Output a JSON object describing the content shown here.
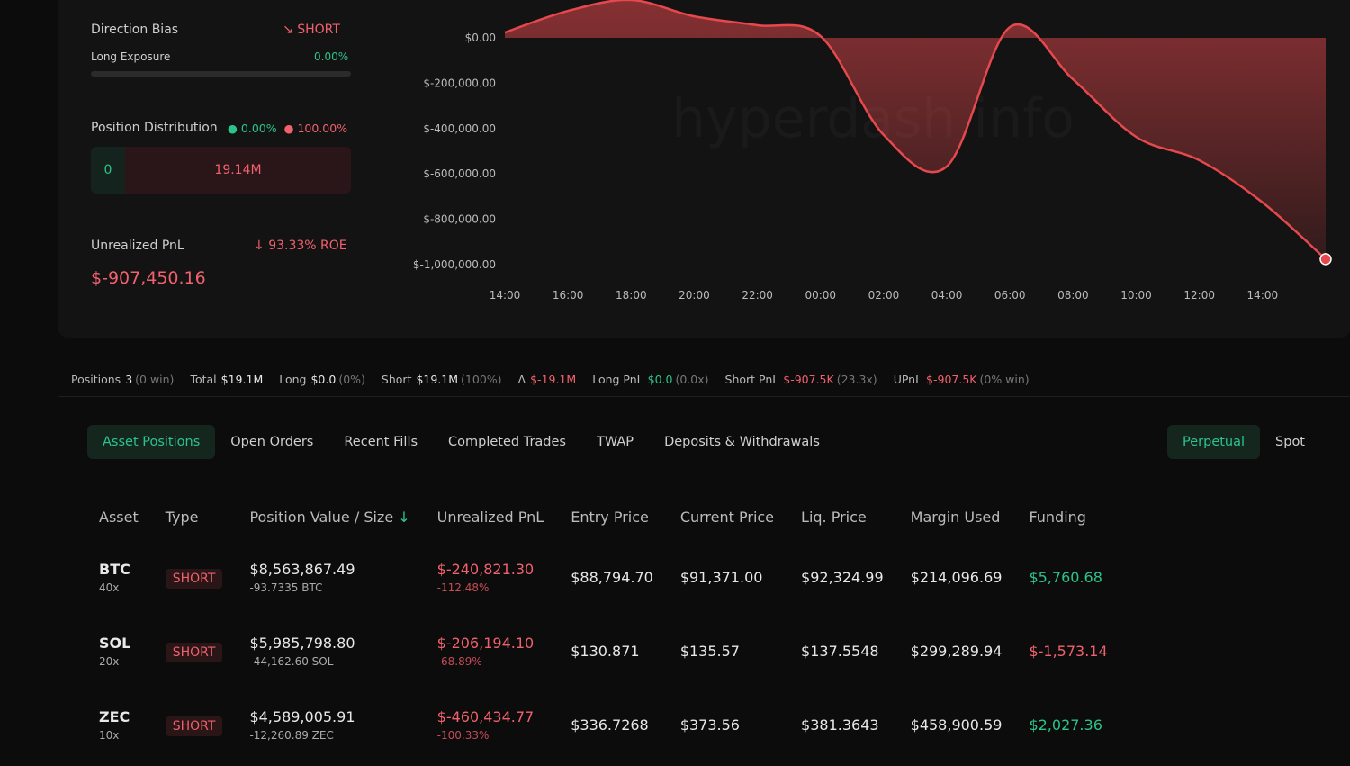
{
  "summary": {
    "direction_bias": {
      "label": "Direction Bias",
      "value": "SHORT"
    },
    "long_exposure": {
      "label": "Long Exposure",
      "value": "0.00%"
    },
    "position_distribution": {
      "label": "Position Distribution",
      "long_pct": "0.00%",
      "short_pct": "100.00%",
      "long_value": "0",
      "short_value": "19.14M"
    },
    "unrealized_pnl": {
      "label": "Unrealized PnL",
      "roe": "93.33% ROE",
      "value": "$-907,450.16"
    }
  },
  "chart_data": {
    "type": "line",
    "watermark": "hyperdash.info",
    "categories": [
      "14:00",
      "16:00",
      "18:00",
      "20:00",
      "22:00",
      "00:00",
      "02:00",
      "04:00",
      "06:00",
      "08:00",
      "10:00",
      "12:00",
      "14:00",
      null
    ],
    "values": [
      24000,
      119000,
      167000,
      95000,
      56000,
      8000,
      -428000,
      -567000,
      48000,
      -183000,
      -437000,
      -540000,
      -726000,
      -976000
    ],
    "color": "#e5484d",
    "ylim": [
      -1040000,
      167000
    ],
    "yticks": [
      {
        "value": 0,
        "label": "$0.00"
      },
      {
        "value": -200000,
        "label": "$-200,000.00"
      },
      {
        "value": -400000,
        "label": "$-400,000.00"
      },
      {
        "value": -600000,
        "label": "$-600,000.00"
      },
      {
        "value": -800000,
        "label": "$-800,000.00"
      },
      {
        "value": -1000000,
        "label": "$-1,000,000.00"
      }
    ]
  },
  "stats": [
    {
      "label": "Positions",
      "value": "3",
      "sub": "(0 win)",
      "color": "#e8e8e8"
    },
    {
      "label": "Total",
      "value": "$19.1M",
      "color": "#e8e8e8"
    },
    {
      "label": "Long",
      "value": "$0.0",
      "sub": "(0%)",
      "color": "#e8e8e8"
    },
    {
      "label": "Short",
      "value": "$19.1M",
      "sub": "(100%)",
      "color": "#e8e8e8"
    },
    {
      "label": "Δ",
      "value": "$-19.1M",
      "color": "#f0616d"
    },
    {
      "label": "Long PnL",
      "value": "$0.0",
      "sub": "(0.0x)",
      "color": "#2bc48a"
    },
    {
      "label": "Short PnL",
      "value": "$-907.5K",
      "sub": "(23.3x)",
      "color": "#f0616d"
    },
    {
      "label": "UPnL",
      "value": "$-907.5K",
      "sub": "(0% win)",
      "color": "#f0616d"
    }
  ],
  "tabs": [
    "Asset Positions",
    "Open Orders",
    "Recent Fills",
    "Completed Trades",
    "TWAP",
    "Deposits & Withdrawals"
  ],
  "market_toggle": [
    "Perpetual",
    "Spot"
  ],
  "table": {
    "headers": [
      "Asset",
      "Type",
      "Position Value / Size",
      "Unrealized PnL",
      "Entry Price",
      "Current Price",
      "Liq. Price",
      "Margin Used",
      "Funding"
    ],
    "rows": [
      {
        "asset": "BTC",
        "leverage": "40x",
        "type": "SHORT",
        "value": "$8,563,867.49",
        "size": "-93.7335 BTC",
        "pnl": "$-240,821.30",
        "pnl_pct": "-112.48%",
        "entry": "$88,794.70",
        "current": "$91,371.00",
        "liq": "$92,324.99",
        "margin": "$214,096.69",
        "funding": "$5,760.68"
      },
      {
        "asset": "SOL",
        "leverage": "20x",
        "type": "SHORT",
        "value": "$5,985,798.80",
        "size": "-44,162.60 SOL",
        "pnl": "$-206,194.10",
        "pnl_pct": "-68.89%",
        "entry": "$130.871",
        "current": "$135.57",
        "liq": "$137.5548",
        "margin": "$299,289.94",
        "funding": "$-1,573.14"
      },
      {
        "asset": "ZEC",
        "leverage": "10x",
        "type": "SHORT",
        "value": "$4,589,005.91",
        "size": "-12,260.89 ZEC",
        "pnl": "$-460,434.77",
        "pnl_pct": "-100.33%",
        "entry": "$336.7268",
        "current": "$373.56",
        "liq": "$381.3643",
        "margin": "$458,900.59",
        "funding": "$2,027.36"
      }
    ]
  }
}
